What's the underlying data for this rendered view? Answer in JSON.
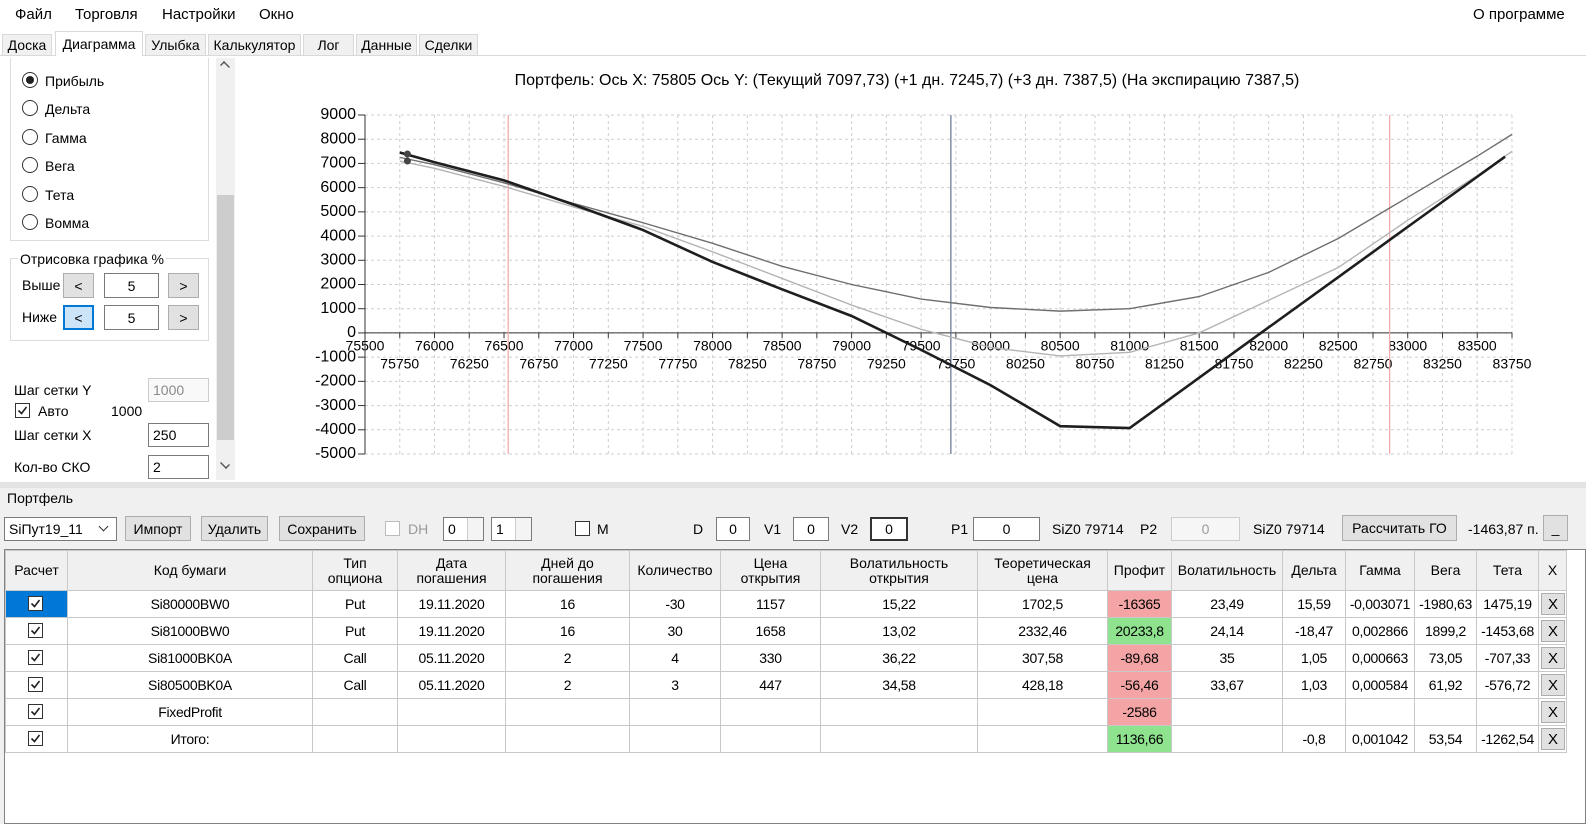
{
  "menu": {
    "items": [
      "Файл",
      "Торговля",
      "Настройки",
      "Окно"
    ],
    "about": "О программе"
  },
  "tabs": {
    "items": [
      "Доска",
      "Диаграмма",
      "Улыбка",
      "Калькулятор",
      "Лог",
      "Данные",
      "Сделки"
    ],
    "active": 1
  },
  "settings": {
    "radios": [
      "Прибыль",
      "Дельта",
      "Гамма",
      "Вега",
      "Тета",
      "Вомма"
    ],
    "selected": 0,
    "draw_group": "Отрисовка графика %",
    "above_label": "Выше",
    "above": "5",
    "below_label": "Ниже",
    "below": "5",
    "prev": "<",
    "next": ">",
    "grid_y_label": "Шаг сетки Y",
    "grid_y": "1000",
    "auto_label": "Авто",
    "auto_value": "1000",
    "grid_x_label": "Шаг сетки X",
    "grid_x": "250",
    "sko_label": "Кол-во СКО",
    "sko": "2"
  },
  "chart_data": {
    "type": "line",
    "title": "Портфель: Ось X: 75805 Ось Y:  (Текущий 7097,73)  (+1 дн. 7245,7)  (+3 дн. 7387,5)  (На экспирацию 7387,5)",
    "xlim": [
      75500,
      83750
    ],
    "xticks": [
      75500,
      75750,
      76000,
      76250,
      76500,
      76750,
      77000,
      77250,
      77500,
      77750,
      78000,
      78250,
      78500,
      78750,
      79000,
      79250,
      79500,
      79750,
      80000,
      80250,
      80500,
      80750,
      81000,
      81250,
      81500,
      81750,
      82000,
      82250,
      82500,
      82750,
      83000,
      83250,
      83500,
      83750
    ],
    "ylim": [
      -5000,
      9000
    ],
    "yticks": [
      9000,
      8000,
      7000,
      6000,
      5000,
      4000,
      3000,
      2000,
      1000,
      0,
      -1000,
      -2000,
      -3000,
      -4000,
      -5000
    ],
    "grid": true,
    "series": [
      {
        "color": "#6e6e6e",
        "width": 1.4,
        "x": [
          75750,
          76000,
          76500,
          77000,
          77500,
          78000,
          78500,
          79000,
          79500,
          80000,
          80500,
          81000,
          81500,
          82000,
          82500,
          83000,
          83500,
          83750
        ],
        "values": [
          7250,
          6950,
          6200,
          5350,
          4550,
          3700,
          2750,
          2000,
          1400,
          1050,
          900,
          1000,
          1500,
          2500,
          3900,
          5600,
          7300,
          8200
        ]
      },
      {
        "color": "#b4b4b4",
        "width": 1.4,
        "x": [
          75750,
          76000,
          76500,
          77000,
          77500,
          78000,
          78500,
          79000,
          79500,
          80000,
          80500,
          81000,
          81500,
          82000,
          82500,
          83000,
          83500,
          83750
        ],
        "values": [
          7100,
          6800,
          6050,
          5200,
          4400,
          3350,
          2250,
          1150,
          150,
          -600,
          -950,
          -800,
          0,
          1350,
          2700,
          4650,
          6500,
          7500
        ]
      },
      {
        "color": "#1e1e1e",
        "width": 2.6,
        "x": [
          75750,
          76000,
          76500,
          77000,
          77500,
          78000,
          78500,
          79000,
          79500,
          80000,
          80500,
          81000,
          81500,
          82000,
          82500,
          83000,
          83500,
          83700
        ],
        "values": [
          7450,
          7050,
          6300,
          5300,
          4250,
          2930,
          1800,
          700,
          -700,
          -2160,
          -3850,
          -3930,
          -1850,
          230,
          2300,
          4380,
          6450,
          7280
        ]
      }
    ],
    "vlines": [
      {
        "x": 76530,
        "color": "#f2a6a6"
      },
      {
        "x": 79714,
        "color": "#60708e"
      },
      {
        "x": 82870,
        "color": "#f2a6a6"
      }
    ],
    "points": [
      {
        "x": 75805,
        "y": 7387.5
      },
      {
        "x": 75805,
        "y": 7097.73
      }
    ],
    "point_color": "#444444"
  },
  "portfolio": {
    "title": "Портфель",
    "combo": "SiПут19_11",
    "buttons": [
      "Импорт",
      "Удалить",
      "Сохранить"
    ],
    "dh": "DH",
    "spin1": "0",
    "spin2": "1",
    "m": "M",
    "d_label": "D",
    "d": "0",
    "v1_label": "V1",
    "v1": "0",
    "v2_label": "V2",
    "v2": "0",
    "p1_label": "P1",
    "p1": "0",
    "p1_sec": "SiZ0 79714",
    "p2_label": "P2",
    "p2": "0",
    "p2_sec": "SiZ0 79714",
    "calc": "Рассчитать ГО",
    "go": "-1463,87 п.",
    "min": "_"
  },
  "table": {
    "headers": [
      "Расчет",
      "Код бумаги",
      "Тип опциона",
      "Дата погашения",
      "Дней до погашения",
      "Количество",
      "Цена открытия",
      "Волатильность открытия",
      "Теоретическая цена",
      "Профит",
      "Волатильность",
      "Дельта",
      "Гамма",
      "Вега",
      "Тета",
      "X"
    ],
    "delete": "X",
    "selected_row": 0,
    "profit_colors": {
      "negative": "#f4a4a4",
      "positive": "#8fe38f"
    },
    "rows": [
      {
        "checked": true,
        "cells": [
          "Si80000BW0",
          "Put",
          "19.11.2020",
          "16",
          "-30",
          "1157",
          "15,22",
          "1702,5",
          "-16365",
          "23,49",
          "15,59",
          "-0,003071",
          "-1980,63",
          "1475,19"
        ]
      },
      {
        "checked": true,
        "cells": [
          "Si81000BW0",
          "Put",
          "19.11.2020",
          "16",
          "30",
          "1658",
          "13,02",
          "2332,46",
          "20233,8",
          "24,14",
          "-18,47",
          "0,002866",
          "1899,2",
          "-1453,68"
        ]
      },
      {
        "checked": true,
        "cells": [
          "Si81000BK0A",
          "Call",
          "05.11.2020",
          "2",
          "4",
          "330",
          "36,22",
          "307,58",
          "-89,68",
          "35",
          "1,05",
          "0,000663",
          "73,05",
          "-707,33"
        ]
      },
      {
        "checked": true,
        "cells": [
          "Si80500BK0A",
          "Call",
          "05.11.2020",
          "2",
          "3",
          "447",
          "34,58",
          "428,18",
          "-56,46",
          "33,67",
          "1,03",
          "0,000584",
          "61,92",
          "-576,72"
        ]
      },
      {
        "checked": true,
        "cells": [
          "FixedProfit",
          null,
          null,
          null,
          null,
          null,
          null,
          null,
          "-2586",
          null,
          null,
          null,
          null,
          null
        ]
      },
      {
        "checked": true,
        "cells": [
          "Итого:",
          null,
          null,
          null,
          null,
          null,
          null,
          null,
          "1136,66",
          null,
          "-0,8",
          "0,001042",
          "53,54",
          "-1262,54"
        ]
      }
    ]
  }
}
